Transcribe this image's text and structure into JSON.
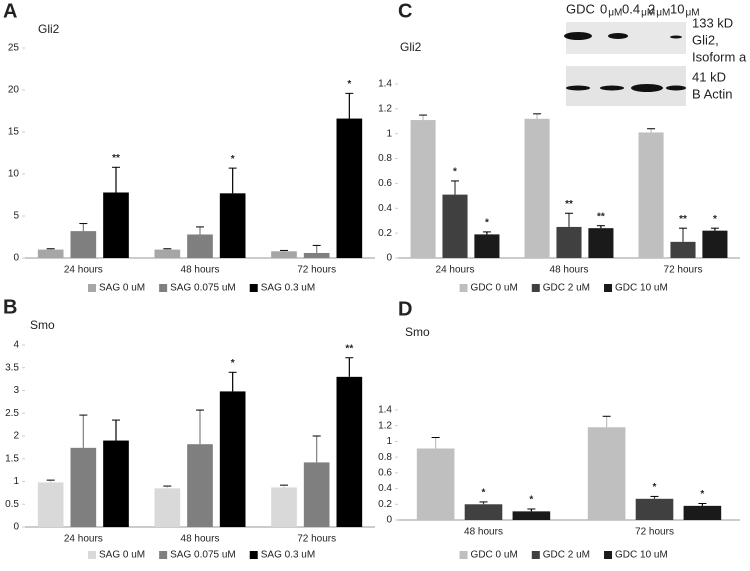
{
  "chart_data": [
    {
      "type": "bar",
      "panel": "A",
      "title": "Gli2",
      "categories": [
        "24 hours",
        "48 hours",
        "72 hours"
      ],
      "ylim": [
        0,
        25
      ],
      "yticks": [
        0,
        5,
        10,
        15,
        20,
        25
      ],
      "series": [
        {
          "name": "SAG 0 uM",
          "color": "#a6a6a6",
          "values": [
            1.0,
            1.0,
            0.8
          ],
          "errors": [
            0.1,
            0.1,
            0.1
          ],
          "significance": [
            null,
            null,
            null
          ]
        },
        {
          "name": "SAG 0.075 uM",
          "color": "#7f7f7f",
          "values": [
            3.2,
            2.8,
            0.6
          ],
          "errors": [
            0.9,
            0.9,
            0.9
          ],
          "significance": [
            null,
            null,
            null
          ]
        },
        {
          "name": "SAG 0.3 uM",
          "color": "#000000",
          "values": [
            7.8,
            7.7,
            16.6
          ],
          "errors": [
            3.0,
            3.0,
            3.0
          ],
          "significance": [
            "**",
            "*",
            "*"
          ]
        }
      ]
    },
    {
      "type": "bar",
      "panel": "B",
      "title": "Smo",
      "categories": [
        "24 hours",
        "48 hours",
        "72 hours"
      ],
      "ylim": [
        0,
        4
      ],
      "yticks": [
        0,
        0.5,
        1,
        1.5,
        2,
        2.5,
        3,
        3.5,
        4
      ],
      "series": [
        {
          "name": "SAG 0 uM",
          "color": "#d9d9d9",
          "values": [
            0.98,
            0.85,
            0.87
          ],
          "errors": [
            0.05,
            0.05,
            0.05
          ],
          "significance": [
            null,
            null,
            null
          ]
        },
        {
          "name": "SAG 0.075 uM",
          "color": "#7f7f7f",
          "values": [
            1.74,
            1.82,
            1.42
          ],
          "errors": [
            0.72,
            0.75,
            0.58
          ],
          "significance": [
            null,
            null,
            null
          ]
        },
        {
          "name": "SAG 0.3 uM",
          "color": "#000000",
          "values": [
            1.9,
            2.98,
            3.3
          ],
          "errors": [
            0.45,
            0.42,
            0.42
          ],
          "significance": [
            null,
            "*",
            "**"
          ]
        }
      ]
    },
    {
      "type": "bar",
      "panel": "C",
      "title": "Gli2",
      "categories": [
        "24 hours",
        "48 hours",
        "72 hours"
      ],
      "ylim": [
        0,
        1.4
      ],
      "yticks": [
        0,
        0.2,
        0.4,
        0.6,
        0.8,
        1,
        1.2,
        1.4
      ],
      "series": [
        {
          "name": "GDC 0 uM",
          "color": "#bfbfbf",
          "values": [
            1.11,
            1.12,
            1.01
          ],
          "errors": [
            0.04,
            0.04,
            0.03
          ],
          "significance": [
            null,
            null,
            null
          ]
        },
        {
          "name": "GDC 2 uM",
          "color": "#404040",
          "values": [
            0.51,
            0.25,
            0.13
          ],
          "errors": [
            0.11,
            0.11,
            0.11
          ],
          "significance": [
            "*",
            "**",
            "**"
          ]
        },
        {
          "name": "GDC 10 uM",
          "color": "#1a1a1a",
          "values": [
            0.19,
            0.24,
            0.22
          ],
          "errors": [
            0.02,
            0.02,
            0.02
          ],
          "significance": [
            "*",
            "**",
            "*"
          ]
        }
      ]
    },
    {
      "type": "bar",
      "panel": "D",
      "title": "Smo",
      "categories": [
        "48 hours",
        "72 hours"
      ],
      "ylim": [
        0,
        1.4
      ],
      "yticks": [
        0,
        0.2,
        0.4,
        0.6,
        0.8,
        1,
        1.2,
        1.4
      ],
      "series": [
        {
          "name": "GDC 0 uM",
          "color": "#bfbfbf",
          "values": [
            0.91,
            1.18
          ],
          "errors": [
            0.14,
            0.14
          ],
          "significance": [
            null,
            null
          ]
        },
        {
          "name": "GDC 2 uM",
          "color": "#404040",
          "values": [
            0.2,
            0.27
          ],
          "errors": [
            0.03,
            0.03
          ],
          "significance": [
            "*",
            "*"
          ]
        },
        {
          "name": "GDC 10 uM",
          "color": "#1a1a1a",
          "values": [
            0.11,
            0.18
          ],
          "errors": [
            0.03,
            0.03
          ],
          "significance": [
            "*",
            "*"
          ]
        }
      ]
    }
  ],
  "blot": {
    "label": "GDC",
    "lanes": [
      "0",
      "0.4",
      "2",
      "10"
    ],
    "unit": "μM",
    "bands": [
      {
        "size": "133 kD",
        "name": [
          "Gli2,",
          "Isoform a"
        ]
      },
      {
        "size": "41 kD",
        "name": [
          "B Actin"
        ]
      }
    ]
  }
}
